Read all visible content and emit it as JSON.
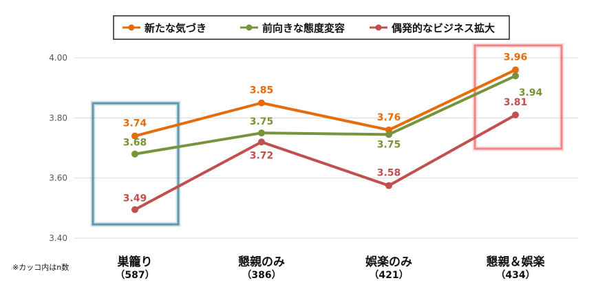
{
  "chart_data": {
    "type": "line",
    "categories": [
      "巣籠り",
      "懇親のみ",
      "娯楽のみ",
      "懇親＆娯楽"
    ],
    "category_counts": [
      "（587）",
      "（386）",
      "（421）",
      "（434）"
    ],
    "ylim": [
      3.4,
      4.0
    ],
    "yticks": [
      "3.40",
      "3.60",
      "3.80",
      "4.00"
    ],
    "grid": true,
    "legend_position": "top",
    "series": [
      {
        "name": "新たな気づき",
        "color": "#E46C0A",
        "values": [
          3.74,
          3.85,
          3.76,
          3.96
        ],
        "labels": [
          "3.74",
          "3.85",
          "3.76",
          "3.96"
        ]
      },
      {
        "name": "前向きな態度変容",
        "color": "#77933C",
        "values": [
          3.68,
          3.75,
          3.745,
          3.94
        ],
        "labels": [
          "3.68",
          "3.75",
          "3.75",
          "3.94"
        ]
      },
      {
        "name": "偶発的なビジネス拡大",
        "color": "#C0504D",
        "values": [
          3.495,
          3.72,
          3.575,
          3.81
        ],
        "labels": [
          "3.49",
          "3.72",
          "3.58",
          "3.81"
        ]
      }
    ],
    "note": "※カッコ内はn数",
    "highlight_colors": {
      "blue": "#4F90A8",
      "red": "#F08080"
    }
  }
}
